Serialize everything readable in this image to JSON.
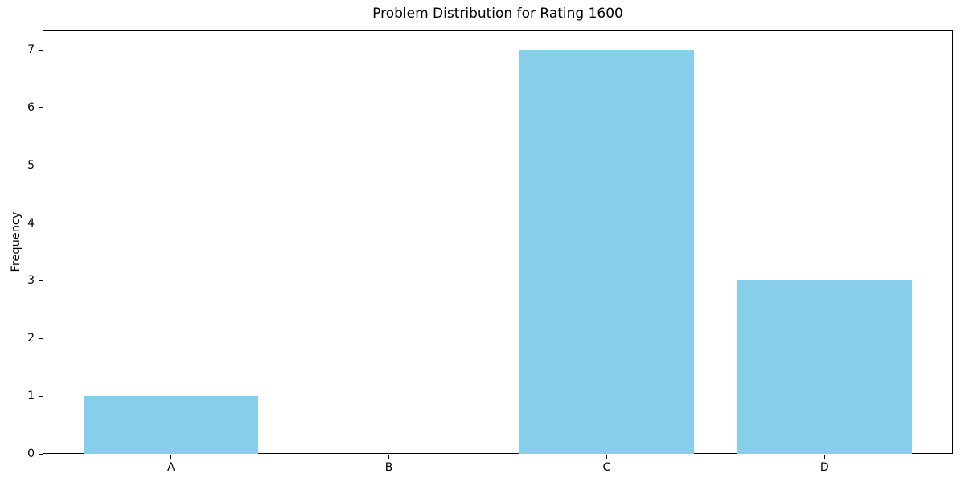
{
  "chart_data": {
    "type": "bar",
    "title": "Problem Distribution for Rating 1600",
    "categories": [
      "A",
      "B",
      "C",
      "D"
    ],
    "values": [
      1,
      0,
      7,
      3
    ],
    "xlabel": "",
    "ylabel": "Frequency",
    "yticks": [
      0,
      1,
      2,
      3,
      4,
      5,
      6,
      7
    ],
    "ylim": [
      0,
      7.35
    ],
    "bar_width_fraction": 0.8,
    "grid": false,
    "legend": null,
    "colors": {
      "bar": "#87CEEB",
      "axis": "#000000",
      "text": "#000000",
      "background": "#FFFFFF"
    }
  }
}
